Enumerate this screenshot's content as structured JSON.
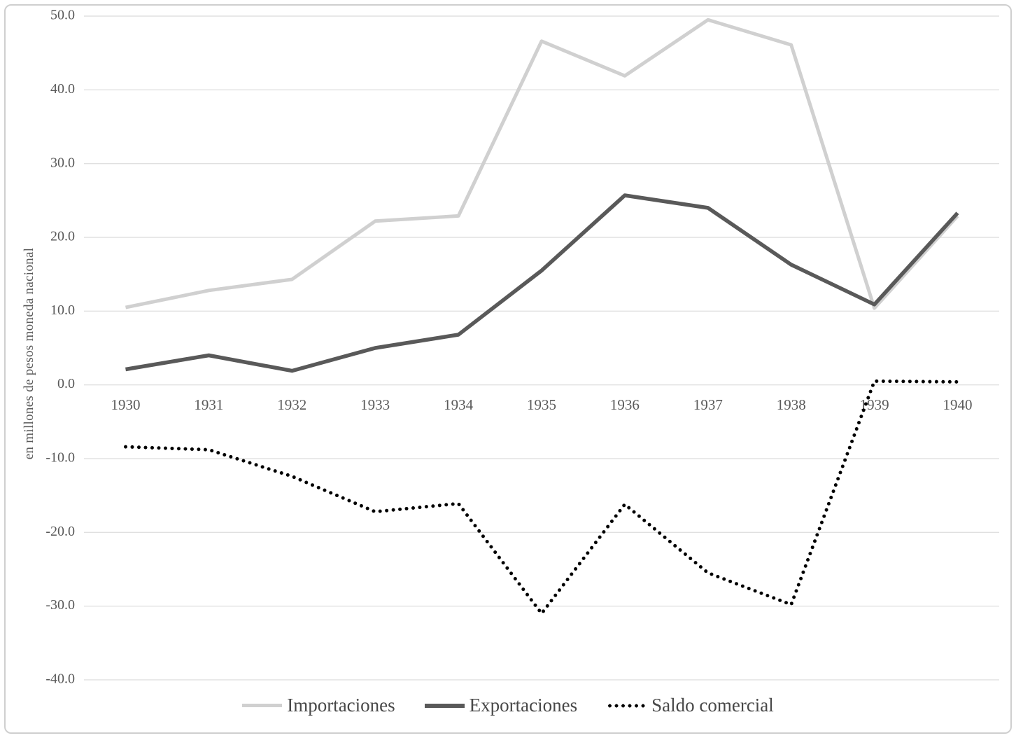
{
  "chart_data": {
    "type": "line",
    "title": "",
    "xlabel": "",
    "ylabel": "en millones de pesos moneda nacional",
    "categories": [
      "1930",
      "1931",
      "1932",
      "1933",
      "1934",
      "1935",
      "1936",
      "1937",
      "1938",
      "1939",
      "1940"
    ],
    "series": [
      {
        "name": "Importaciones",
        "style": "solid-light",
        "color": "#d0d0d0",
        "values": [
          10.5,
          12.8,
          14.3,
          22.2,
          22.9,
          46.6,
          41.9,
          49.5,
          46.1,
          10.4,
          22.9
        ]
      },
      {
        "name": "Exportaciones",
        "style": "solid-dark",
        "color": "#595959",
        "values": [
          2.1,
          4.0,
          1.9,
          5.0,
          6.8,
          15.5,
          25.7,
          24.0,
          16.3,
          10.9,
          23.3
        ]
      },
      {
        "name": "Saldo comercial",
        "style": "dotted",
        "color": "#000000",
        "values": [
          -8.4,
          -8.8,
          -12.4,
          -17.2,
          -16.1,
          -31.0,
          -16.2,
          -25.5,
          -29.8,
          0.5,
          0.4
        ]
      }
    ],
    "y_ticks": [
      "50.0",
      "40.0",
      "30.0",
      "20.0",
      "10.0",
      "0.0",
      "-10.0",
      "-20.0",
      "-30.0",
      "-40.0"
    ],
    "ylim": [
      -40,
      50
    ],
    "ytick_step": 10,
    "grid": true,
    "legend_position": "bottom",
    "text_color": "#595959",
    "gridline_color": "#e0e0e0"
  }
}
